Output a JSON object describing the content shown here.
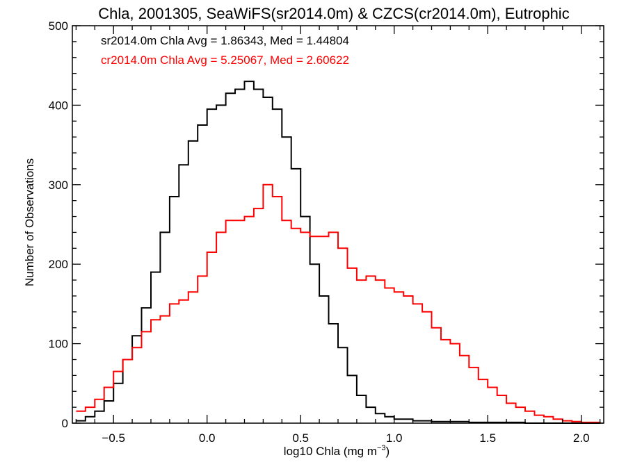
{
  "chart_data": {
    "type": "line",
    "title": "Chla, 2001305, SeaWiFS(sr2014.0m) & CZCS(cr2014.0m), Eutrophic",
    "xlabel_main": "log10 Chla (mg m",
    "xlabel_sup": "−3",
    "xlabel_close": ")",
    "ylabel": "Number of Observations",
    "xlim": [
      -0.72,
      2.12
    ],
    "ylim": [
      0,
      500
    ],
    "x_ticks": [
      -0.5,
      0.0,
      0.5,
      1.0,
      1.5,
      2.0
    ],
    "x_tick_labels": [
      "−0.5",
      "0.0",
      "0.5",
      "1.0",
      "1.5",
      "2.0"
    ],
    "y_ticks": [
      0,
      100,
      200,
      300,
      400,
      500
    ],
    "y_tick_labels": [
      "0",
      "100",
      "200",
      "300",
      "400",
      "500"
    ],
    "grid": false,
    "step": "histogram",
    "annotations": [
      {
        "text": "sr2014.0m Chla Avg = 1.86343, Med = 1.44804",
        "color": "#000000"
      },
      {
        "text": "cr2014.0m Chla Avg = 5.25067, Med = 2.60622",
        "color": "#ff0000"
      }
    ],
    "series": [
      {
        "color": "#000000",
        "x": [
          -0.7,
          -0.65,
          -0.6,
          -0.55,
          -0.5,
          -0.45,
          -0.4,
          -0.35,
          -0.3,
          -0.25,
          -0.2,
          -0.15,
          -0.1,
          -0.05,
          0.0,
          0.05,
          0.1,
          0.15,
          0.2,
          0.25,
          0.3,
          0.35,
          0.4,
          0.45,
          0.5,
          0.55,
          0.6,
          0.65,
          0.7,
          0.75,
          0.8,
          0.85,
          0.9,
          0.95,
          1.0,
          1.1,
          1.2,
          1.3,
          1.4,
          1.5,
          1.6,
          1.7,
          1.8,
          1.9,
          2.0,
          2.1
        ],
        "y": [
          3,
          8,
          15,
          28,
          50,
          80,
          110,
          145,
          190,
          240,
          285,
          325,
          355,
          375,
          395,
          400,
          415,
          420,
          430,
          420,
          410,
          395,
          360,
          320,
          260,
          200,
          160,
          125,
          95,
          60,
          35,
          20,
          12,
          8,
          5,
          3,
          2,
          2,
          1,
          1,
          1,
          0,
          0,
          0,
          0,
          0
        ]
      },
      {
        "color": "#ff0000",
        "x": [
          -0.7,
          -0.65,
          -0.6,
          -0.55,
          -0.5,
          -0.45,
          -0.4,
          -0.35,
          -0.3,
          -0.25,
          -0.2,
          -0.15,
          -0.1,
          -0.05,
          0.0,
          0.05,
          0.1,
          0.15,
          0.2,
          0.25,
          0.3,
          0.35,
          0.4,
          0.45,
          0.5,
          0.55,
          0.6,
          0.65,
          0.7,
          0.75,
          0.8,
          0.85,
          0.9,
          0.95,
          1.0,
          1.05,
          1.1,
          1.15,
          1.2,
          1.25,
          1.3,
          1.35,
          1.4,
          1.45,
          1.5,
          1.55,
          1.6,
          1.65,
          1.7,
          1.75,
          1.8,
          1.85,
          1.9,
          1.95,
          2.0,
          2.1
        ],
        "y": [
          15,
          20,
          30,
          45,
          65,
          80,
          95,
          115,
          130,
          135,
          150,
          155,
          165,
          185,
          215,
          240,
          255,
          255,
          260,
          270,
          300,
          285,
          255,
          245,
          240,
          235,
          235,
          240,
          220,
          195,
          180,
          185,
          180,
          170,
          165,
          160,
          150,
          140,
          120,
          105,
          100,
          85,
          70,
          55,
          45,
          35,
          25,
          20,
          15,
          10,
          8,
          5,
          3,
          2,
          1,
          0
        ]
      }
    ]
  }
}
